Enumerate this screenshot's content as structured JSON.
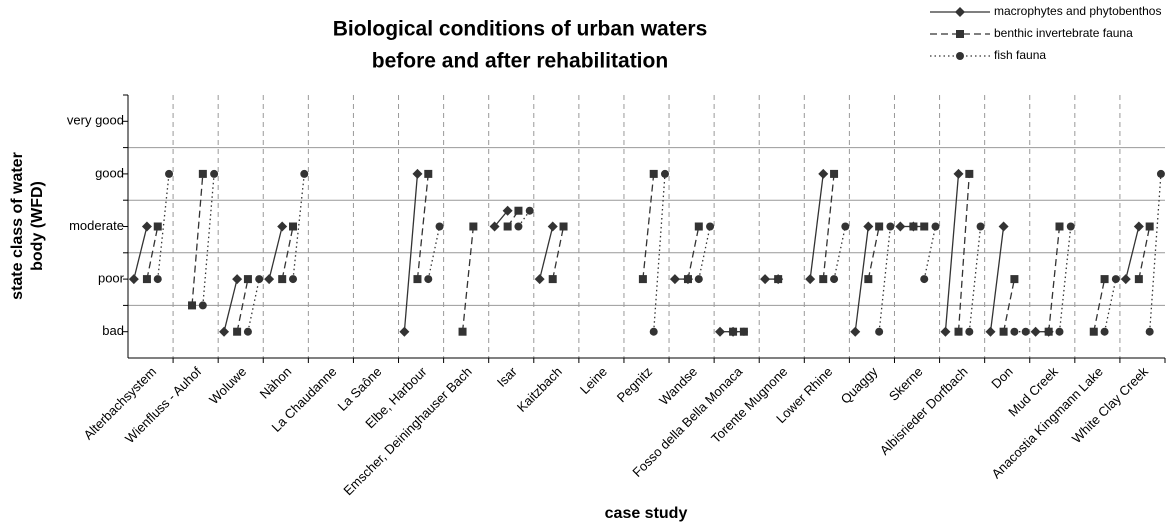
{
  "chart_data": {
    "type": "before-after",
    "title": [
      "Biological conditions of urban waters",
      "before and after rehabilitation"
    ],
    "x_label": "case study",
    "y_label": [
      "state class of water",
      "body (WFD)"
    ],
    "categories": [
      "Alterbachsystem",
      "Wienfluss - Auhof",
      "Woluwe",
      "Nàhon",
      "La Chaudanne",
      "La Saône",
      "Elbe, Harbour",
      "Emscher, Deininghauser Bach",
      "Isar",
      "Kaitzbach",
      "Leine",
      "Pegnitz",
      "Wandse",
      "Fosso della Bella Monaca",
      "Torente Mugnone",
      "Lower Rhine",
      "Quaggy",
      "Skerne",
      "Albisrieder Dorfbach",
      "Don",
      "Mud Creek",
      "Anacostia Kingmann Lake",
      "White Clay Creek"
    ],
    "series": [
      {
        "name": "macrophytes and phytobenthos",
        "color": "#333333",
        "marker": "diamond",
        "dash": "none",
        "before": [
          2,
          null,
          1,
          2,
          null,
          null,
          1,
          null,
          3,
          2,
          null,
          null,
          2,
          1,
          2,
          2,
          1,
          3,
          1,
          1,
          1,
          null,
          2
        ],
        "after": [
          3,
          null,
          2,
          3,
          null,
          null,
          4,
          null,
          3.3,
          3,
          null,
          null,
          2,
          1,
          2,
          4,
          3,
          3,
          4,
          3,
          1,
          null,
          3
        ]
      },
      {
        "name": "benthic invertebrate fauna",
        "color": "#333333",
        "marker": "square",
        "dash": "7,4",
        "before": [
          2,
          1.5,
          1,
          2,
          null,
          null,
          2,
          1,
          3,
          2,
          null,
          2,
          2,
          1,
          2,
          2,
          2,
          3,
          1,
          1,
          1,
          1,
          2
        ],
        "after": [
          3,
          4,
          2,
          3,
          null,
          null,
          4,
          3,
          3.3,
          3,
          null,
          4,
          3,
          1,
          null,
          4,
          3,
          3,
          4,
          2,
          3,
          2,
          3
        ]
      },
      {
        "name": "fish fauna",
        "color": "#333333",
        "marker": "circle",
        "dash": "1.5,3",
        "before": [
          2,
          1.5,
          1,
          2,
          null,
          null,
          2,
          null,
          3,
          null,
          null,
          1,
          2,
          1,
          null,
          2,
          1,
          2,
          1,
          1,
          1,
          1,
          1
        ],
        "after": [
          4,
          4,
          2,
          4,
          null,
          null,
          3,
          null,
          3.3,
          null,
          null,
          4,
          3,
          null,
          null,
          3,
          3,
          3,
          3,
          1,
          3,
          2,
          4
        ]
      }
    ],
    "ylim": [
      0.5,
      5.5
    ],
    "yticks": [
      {
        "value": 1,
        "label": "bad"
      },
      {
        "value": 2,
        "label": "poor"
      },
      {
        "value": 3,
        "label": "moderate"
      },
      {
        "value": 4,
        "label": "good"
      },
      {
        "value": 5,
        "label": "very good"
      }
    ],
    "ygrid": [
      1.5,
      2.5,
      3.5,
      4.5
    ],
    "legend": "top-right"
  }
}
